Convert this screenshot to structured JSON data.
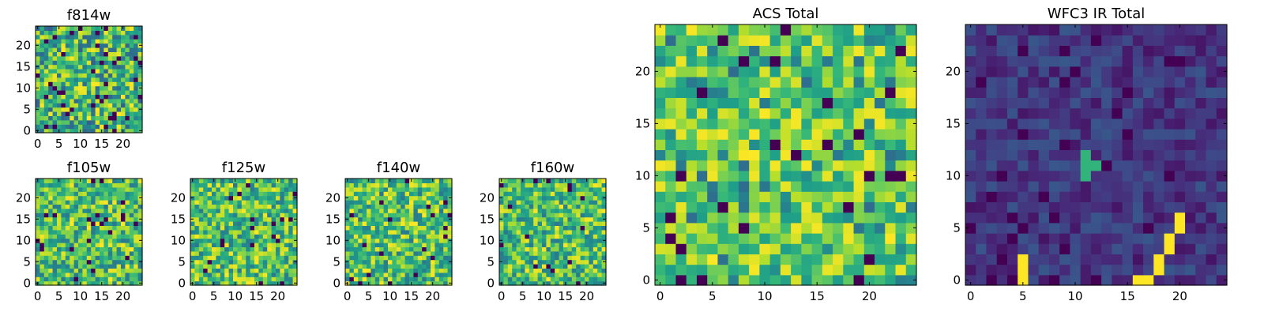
{
  "chart_data": [
    {
      "type": "heatmap",
      "title": "f814w",
      "grid_size": 25,
      "xticks": [
        0,
        5,
        10,
        15,
        20
      ],
      "yticks": [
        0,
        5,
        10,
        15,
        20
      ],
      "xlim": [
        0,
        25
      ],
      "ylim": [
        0,
        25
      ],
      "seed": 11,
      "palette": "mixed"
    },
    {
      "type": "heatmap",
      "title": "f105w",
      "grid_size": 25,
      "xticks": [
        0,
        5,
        10,
        15,
        20
      ],
      "yticks": [
        0,
        5,
        10,
        15,
        20
      ],
      "xlim": [
        0,
        25
      ],
      "ylim": [
        0,
        25
      ],
      "seed": 23,
      "palette": "bright"
    },
    {
      "type": "heatmap",
      "title": "f125w",
      "grid_size": 25,
      "xticks": [
        0,
        5,
        10,
        15,
        20
      ],
      "yticks": [
        0,
        5,
        10,
        15,
        20
      ],
      "xlim": [
        0,
        25
      ],
      "ylim": [
        0,
        25
      ],
      "seed": 37,
      "palette": "bright"
    },
    {
      "type": "heatmap",
      "title": "f140w",
      "grid_size": 25,
      "xticks": [
        0,
        5,
        10,
        15,
        20
      ],
      "yticks": [
        0,
        5,
        10,
        15,
        20
      ],
      "xlim": [
        0,
        25
      ],
      "ylim": [
        0,
        25
      ],
      "seed": 41,
      "palette": "bright"
    },
    {
      "type": "heatmap",
      "title": "f160w",
      "grid_size": 25,
      "xticks": [
        0,
        5,
        10,
        15,
        20
      ],
      "yticks": [
        0,
        5,
        10,
        15,
        20
      ],
      "xlim": [
        0,
        25
      ],
      "ylim": [
        0,
        25
      ],
      "seed": 53,
      "palette": "bright"
    },
    {
      "type": "heatmap",
      "title": "ACS Total",
      "grid_size": 25,
      "xticks": [
        0,
        5,
        10,
        15,
        20
      ],
      "yticks": [
        0,
        5,
        10,
        15,
        20
      ],
      "xlim": [
        0,
        25
      ],
      "ylim": [
        0,
        25
      ],
      "seed": 67,
      "palette": "green"
    },
    {
      "type": "heatmap",
      "title": "WFC3 IR Total",
      "grid_size": 25,
      "xticks": [
        0,
        5,
        10,
        15,
        20
      ],
      "yticks": [
        0,
        5,
        10,
        15,
        20
      ],
      "xlim": [
        0,
        25
      ],
      "ylim": [
        0,
        25
      ],
      "seed": 79,
      "palette": "dark",
      "bright_cells": [
        [
          5,
          0
        ],
        [
          5,
          1
        ],
        [
          5,
          2
        ],
        [
          16,
          0
        ],
        [
          17,
          0
        ],
        [
          18,
          1
        ],
        [
          18,
          2
        ],
        [
          19,
          3
        ],
        [
          19,
          4
        ],
        [
          20,
          5
        ],
        [
          20,
          6
        ],
        [
          11,
          10
        ],
        [
          11,
          11
        ],
        [
          12,
          11
        ],
        [
          11,
          12
        ]
      ]
    }
  ]
}
